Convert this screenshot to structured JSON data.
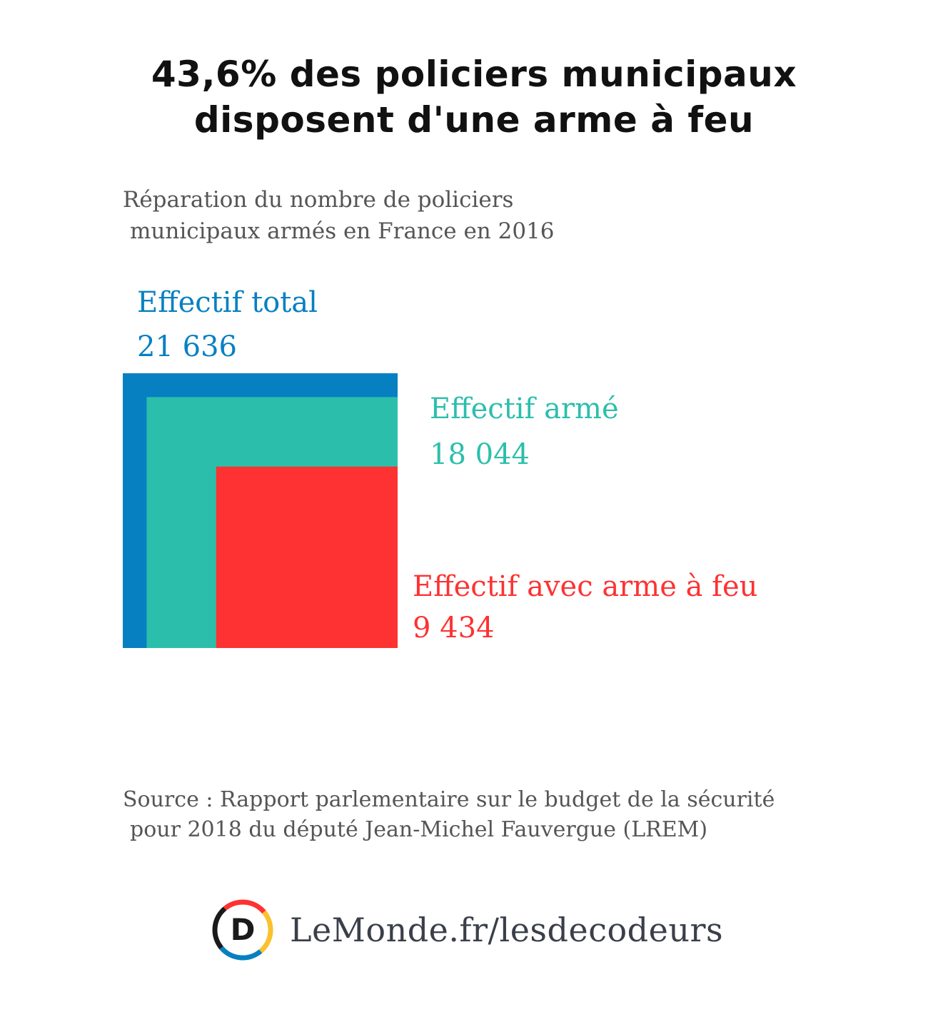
{
  "title": {
    "line1": "43,6% des policiers municipaux",
    "line2": "disposent d'une arme à feu"
  },
  "subtitle": {
    "line1": "Réparation du nombre de policiers",
    "line2": "municipaux armés en France en 2016"
  },
  "chart_data": {
    "type": "nested-square",
    "title": "43,6% des policiers municipaux disposent d'une arme à feu",
    "series": [
      {
        "name": "Effectif total",
        "value": 21636,
        "label": "21 636",
        "color": "#0780c2"
      },
      {
        "name": "Effectif armé",
        "value": 18044,
        "label": "18 044",
        "color": "#2bbfab"
      },
      {
        "name": "Effectif avec arme à feu",
        "value": 9434,
        "label": "9 434",
        "color": "#fe3232"
      }
    ]
  },
  "source": {
    "line1": "Source : Rapport parlementaire sur le budget de la sécurité",
    "line2": "pour 2018 du député Jean-Michel Fauvergue (LREM)"
  },
  "brand": {
    "logo_letter": "D",
    "text": "LeMonde.fr/lesdecodeurs",
    "colors": [
      "#fe3232",
      "#fbc02d",
      "#0780c2",
      "#1a1a1a"
    ]
  }
}
